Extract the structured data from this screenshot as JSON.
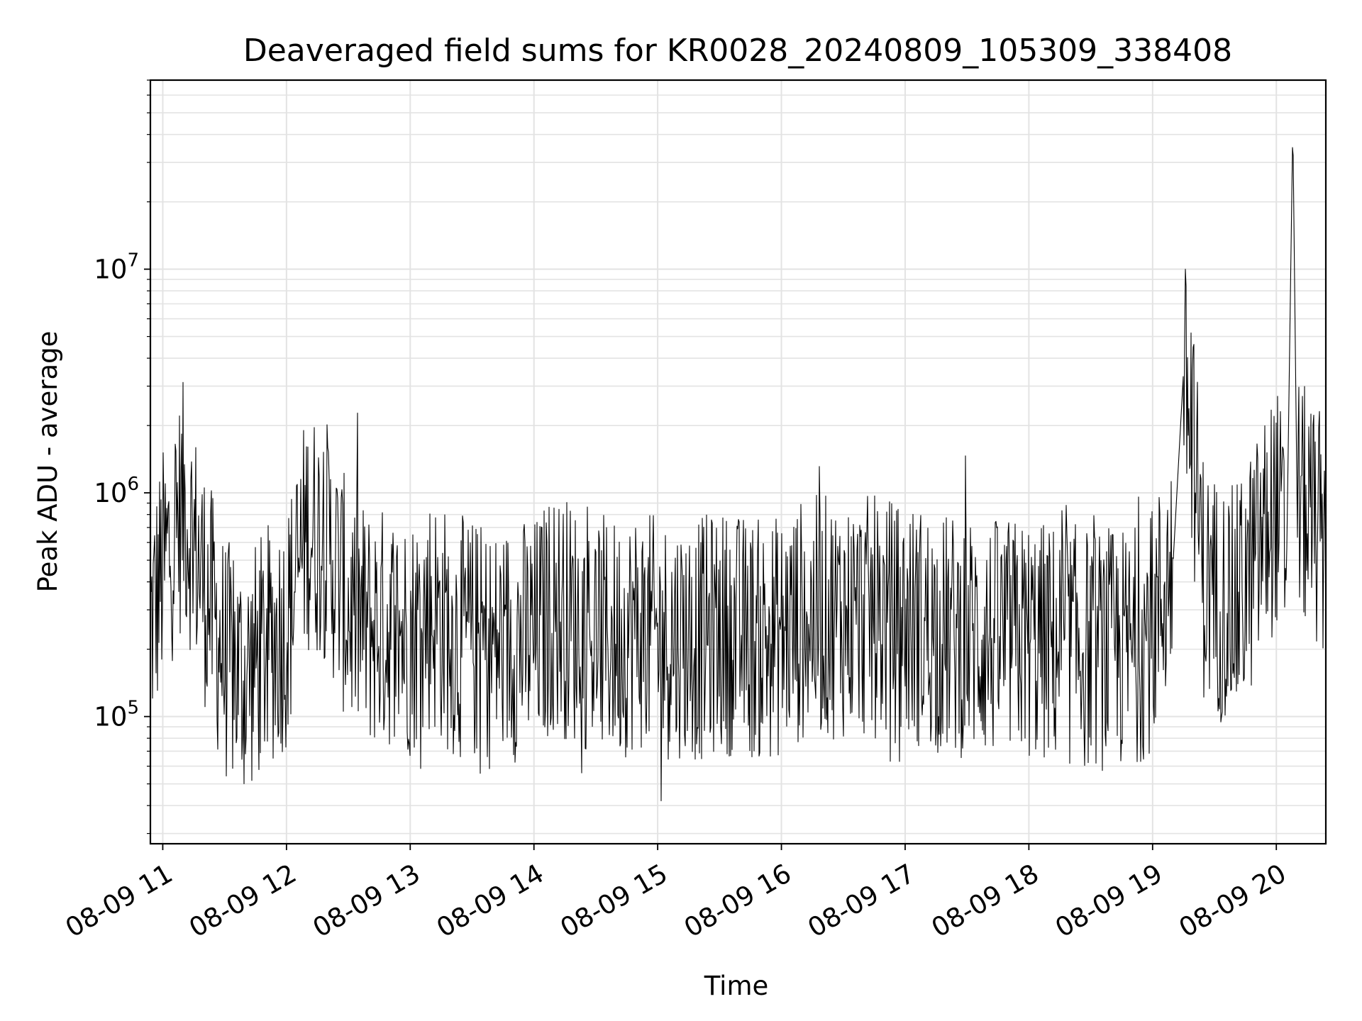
{
  "chart_data": {
    "type": "line",
    "title": "Deaveraged field sums for KR0028_20240809_105309_338408",
    "xlabel": "Time",
    "ylabel": "Peak ADU - average",
    "yscale": "log",
    "ylim": [
      27000,
      70000000
    ],
    "xlim": [
      "2024-08-09 10:54",
      "2024-08-09 20:24"
    ],
    "grid": true,
    "x_tick_labels": [
      "08-09 11",
      "08-09 12",
      "08-09 13",
      "08-09 14",
      "08-09 15",
      "08-09 16",
      "08-09 17",
      "08-09 18",
      "08-09 19",
      "08-09 20"
    ],
    "x_tick_times": [
      "2024-08-09 11:00",
      "2024-08-09 12:00",
      "2024-08-09 13:00",
      "2024-08-09 14:00",
      "2024-08-09 15:00",
      "2024-08-09 16:00",
      "2024-08-09 17:00",
      "2024-08-09 18:00",
      "2024-08-09 19:00",
      "2024-08-09 20:00"
    ],
    "y_tick_labels": [
      {
        "base": "10",
        "exp": "5",
        "value": 100000
      },
      {
        "base": "10",
        "exp": "6",
        "value": 1000000
      },
      {
        "base": "10",
        "exp": "7",
        "value": 10000000
      }
    ],
    "series": [
      {
        "color": "#000000",
        "x": [
          "2024-08-09 10:54",
          "2024-08-09 11:00",
          "2024-08-09 11:10",
          "2024-08-09 11:20",
          "2024-08-09 11:30",
          "2024-08-09 11:40",
          "2024-08-09 11:50",
          "2024-08-09 12:00",
          "2024-08-09 12:10",
          "2024-08-09 12:20",
          "2024-08-09 12:30",
          "2024-08-09 12:40",
          "2024-08-09 12:50",
          "2024-08-09 13:00",
          "2024-08-09 13:10",
          "2024-08-09 13:20",
          "2024-08-09 13:30",
          "2024-08-09 13:40",
          "2024-08-09 13:50",
          "2024-08-09 14:00",
          "2024-08-09 14:10",
          "2024-08-09 14:20",
          "2024-08-09 14:30",
          "2024-08-09 14:40",
          "2024-08-09 14:50",
          "2024-08-09 15:00",
          "2024-08-09 15:10",
          "2024-08-09 15:20",
          "2024-08-09 15:30",
          "2024-08-09 15:40",
          "2024-08-09 15:50",
          "2024-08-09 16:00",
          "2024-08-09 16:10",
          "2024-08-09 16:20",
          "2024-08-09 16:30",
          "2024-08-09 16:40",
          "2024-08-09 16:50",
          "2024-08-09 17:00",
          "2024-08-09 17:10",
          "2024-08-09 17:20",
          "2024-08-09 17:30",
          "2024-08-09 17:40",
          "2024-08-09 17:50",
          "2024-08-09 18:00",
          "2024-08-09 18:10",
          "2024-08-09 18:20",
          "2024-08-09 18:30",
          "2024-08-09 18:40",
          "2024-08-09 18:50",
          "2024-08-09 19:00",
          "2024-08-09 19:10",
          "2024-08-09 19:15",
          "2024-08-09 19:20",
          "2024-08-09 19:25",
          "2024-08-09 19:30",
          "2024-08-09 19:40",
          "2024-08-09 19:50",
          "2024-08-09 20:00",
          "2024-08-09 20:05",
          "2024-08-09 20:08",
          "2024-08-09 20:10",
          "2024-08-09 20:15",
          "2024-08-09 20:24"
        ],
        "values": [
          250000,
          450000,
          900000,
          400000,
          180000,
          150000,
          200000,
          250000,
          700000,
          600000,
          300000,
          250000,
          250000,
          230000,
          300000,
          230000,
          220000,
          200000,
          220000,
          220000,
          300000,
          260000,
          230000,
          220000,
          250000,
          220000,
          230000,
          220000,
          240000,
          230000,
          220000,
          230000,
          270000,
          280000,
          280000,
          280000,
          270000,
          260000,
          250000,
          230000,
          230000,
          220000,
          220000,
          220000,
          210000,
          210000,
          200000,
          200000,
          200000,
          250000,
          500000,
          3500000,
          1500000,
          400000,
          350000,
          300000,
          500000,
          900000,
          500000,
          45000000,
          1000000,
          800000,
          600000
        ]
      }
    ]
  }
}
